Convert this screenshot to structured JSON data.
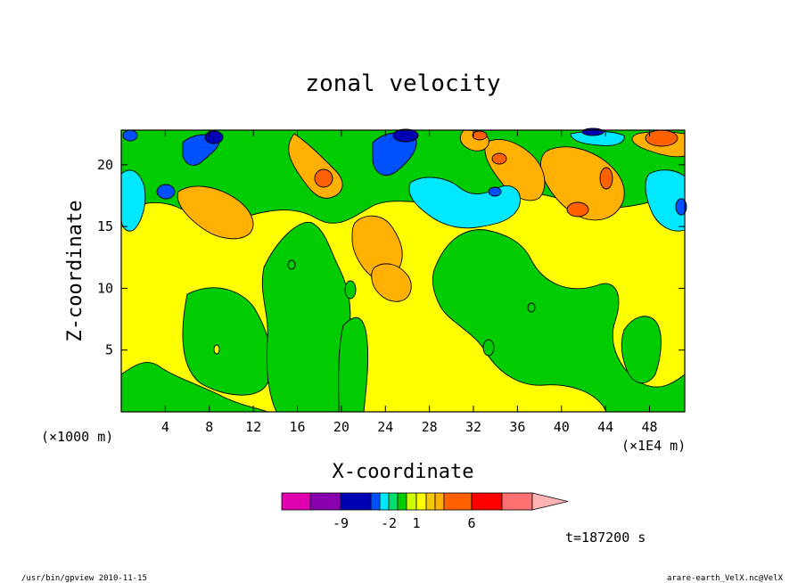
{
  "chart_data": {
    "type": "heatmap",
    "title": "zonal velocity",
    "xlabel": "X-coordinate",
    "ylabel": "Z-coordinate",
    "x_unit_left": "(×1000 m)",
    "x_unit_right": "(×1E4 m)",
    "xlim": [
      0,
      51.2
    ],
    "ylim": [
      0,
      22.8
    ],
    "x_ticks": [
      4,
      8,
      12,
      16,
      20,
      24,
      28,
      32,
      36,
      40,
      44,
      48
    ],
    "y_ticks": [
      5,
      10,
      15,
      20
    ],
    "grid": false,
    "colorbar": {
      "levels": [
        -12,
        -9,
        -6,
        -3,
        -2,
        -1,
        0,
        1,
        2,
        3,
        4,
        6,
        9,
        12
      ],
      "labels": [
        "-9",
        "-2",
        "1",
        "6"
      ],
      "colors": [
        "#e000b0",
        "#8800b0",
        "#0000b4",
        "#0050ff",
        "#00e8ff",
        "#00e070",
        "#00cc00",
        "#ccff00",
        "#ffff00",
        "#f2c800",
        "#ffb000",
        "#ff6000",
        "#ff0000",
        "#ff7070",
        "#ffb4b4"
      ]
    },
    "field_regions": [
      {
        "desc": "upper band, mixed",
        "x": [
          0,
          51.2
        ],
        "z": [
          16,
          22.8
        ],
        "value_range": [
          -9,
          6
        ]
      },
      {
        "desc": "low-level green",
        "x": [
          6,
          14
        ],
        "z": [
          2,
          10
        ],
        "value": 0
      },
      {
        "desc": "mid-level yellow",
        "x": [
          0,
          51.2
        ],
        "z": [
          0,
          16
        ],
        "value": 1
      }
    ]
  },
  "footer": {
    "timestamp": "t=187200 s",
    "left": "/usr/bin/gpview  2010-11-15",
    "right": "arare-earth_VelX.nc@VelX"
  }
}
